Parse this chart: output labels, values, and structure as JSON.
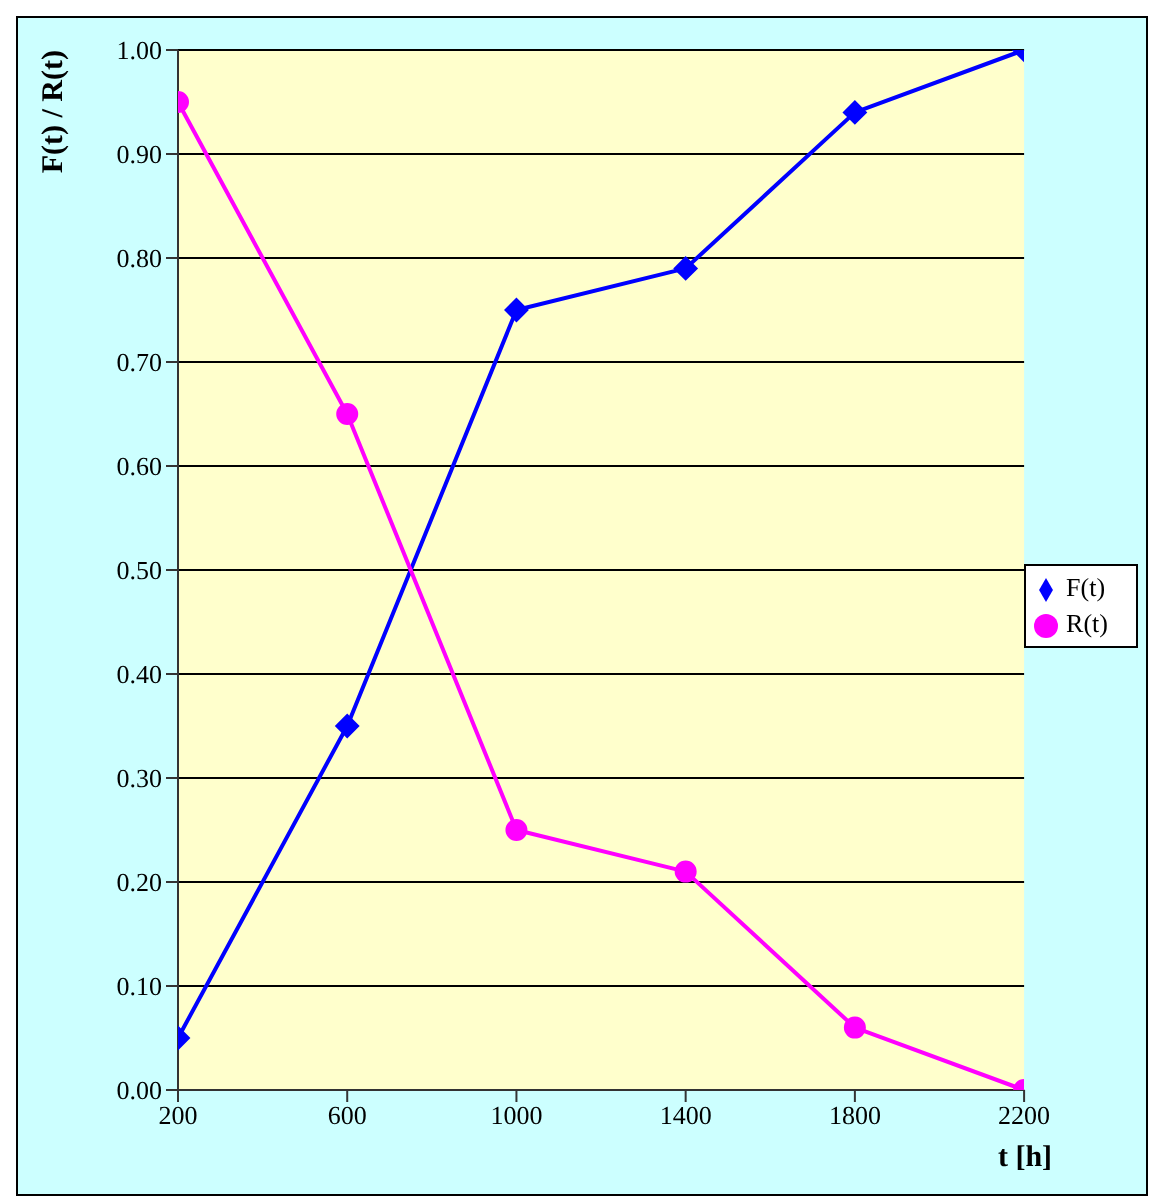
{
  "chart_data": {
    "type": "line",
    "xlabel": "t [h]",
    "ylabel": "F(t) / R(t)",
    "x": [
      200,
      600,
      1000,
      1400,
      1800,
      2200
    ],
    "series": [
      {
        "name": "F(t)",
        "color": "#0000ff",
        "marker": "diamond",
        "values": [
          0.05,
          0.35,
          0.75,
          0.79,
          0.94,
          1.0
        ]
      },
      {
        "name": "R(t)",
        "color": "#ff00ff",
        "marker": "circle",
        "values": [
          0.95,
          0.65,
          0.25,
          0.21,
          0.06,
          0.0
        ]
      }
    ],
    "xlim": [
      200,
      2200
    ],
    "xticks": [
      200,
      600,
      1000,
      1400,
      1800,
      2200
    ],
    "ylim": [
      0,
      1
    ],
    "yticks": [
      {
        "value": 0,
        "label": "0.00"
      },
      {
        "value": 0.1,
        "label": "0.10"
      },
      {
        "value": 0.2,
        "label": "0.20"
      },
      {
        "value": 0.3,
        "label": "0.30"
      },
      {
        "value": 0.4,
        "label": "0.40"
      },
      {
        "value": 0.5,
        "label": "0.50"
      },
      {
        "value": 0.6,
        "label": "0.60"
      },
      {
        "value": 0.7,
        "label": "0.70"
      },
      {
        "value": 0.8,
        "label": "0.80"
      },
      {
        "value": 0.9,
        "label": "0.90"
      },
      {
        "value": 1,
        "label": "1.00"
      }
    ],
    "grid": "y",
    "legend": "right",
    "line_style": "solid"
  }
}
